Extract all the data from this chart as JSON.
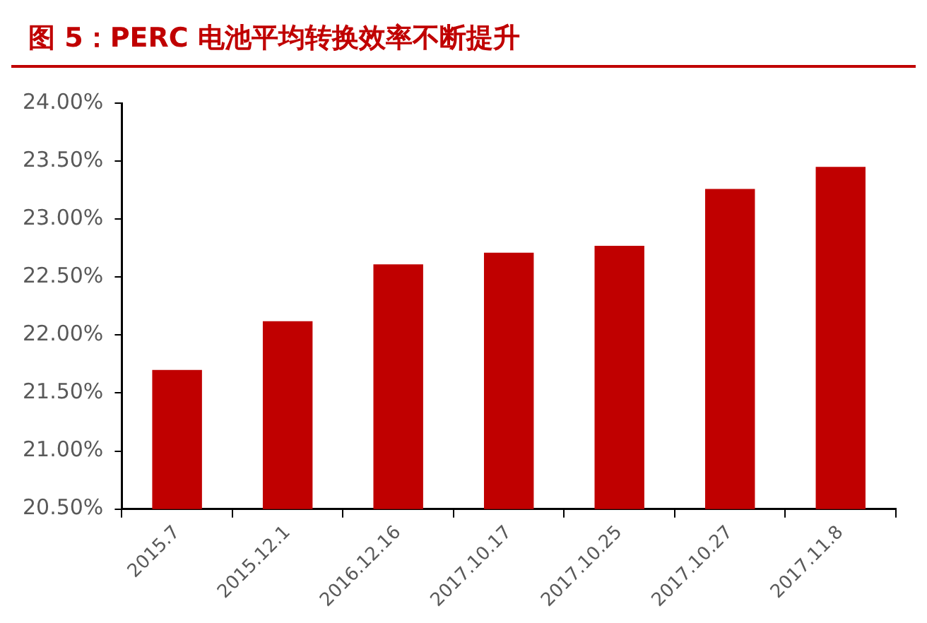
{
  "chart_data": {
    "type": "bar",
    "title": "图 5：PERC 电池平均转换效率不断提升",
    "categories": [
      "2015.7",
      "2015.12.1",
      "2016.12.16",
      "2017.10.17",
      "2017.10.25",
      "2017.10.27",
      "2017.11.8"
    ],
    "values": [
      21.7,
      22.12,
      22.61,
      22.71,
      22.77,
      23.26,
      23.45
    ],
    "color": "#c00000",
    "ylim": [
      20.5,
      24
    ],
    "yticks": [
      {
        "value": 20.5,
        "label": "20.50%"
      },
      {
        "value": 21,
        "label": "21.00%"
      },
      {
        "value": 21.5,
        "label": "21.50%"
      },
      {
        "value": 22,
        "label": "22.00%"
      },
      {
        "value": 22.5,
        "label": "22.50%"
      },
      {
        "value": 23,
        "label": "23.00%"
      },
      {
        "value": 23.5,
        "label": "23.50%"
      },
      {
        "value": 24,
        "label": "24.00%"
      }
    ],
    "grid": false
  }
}
